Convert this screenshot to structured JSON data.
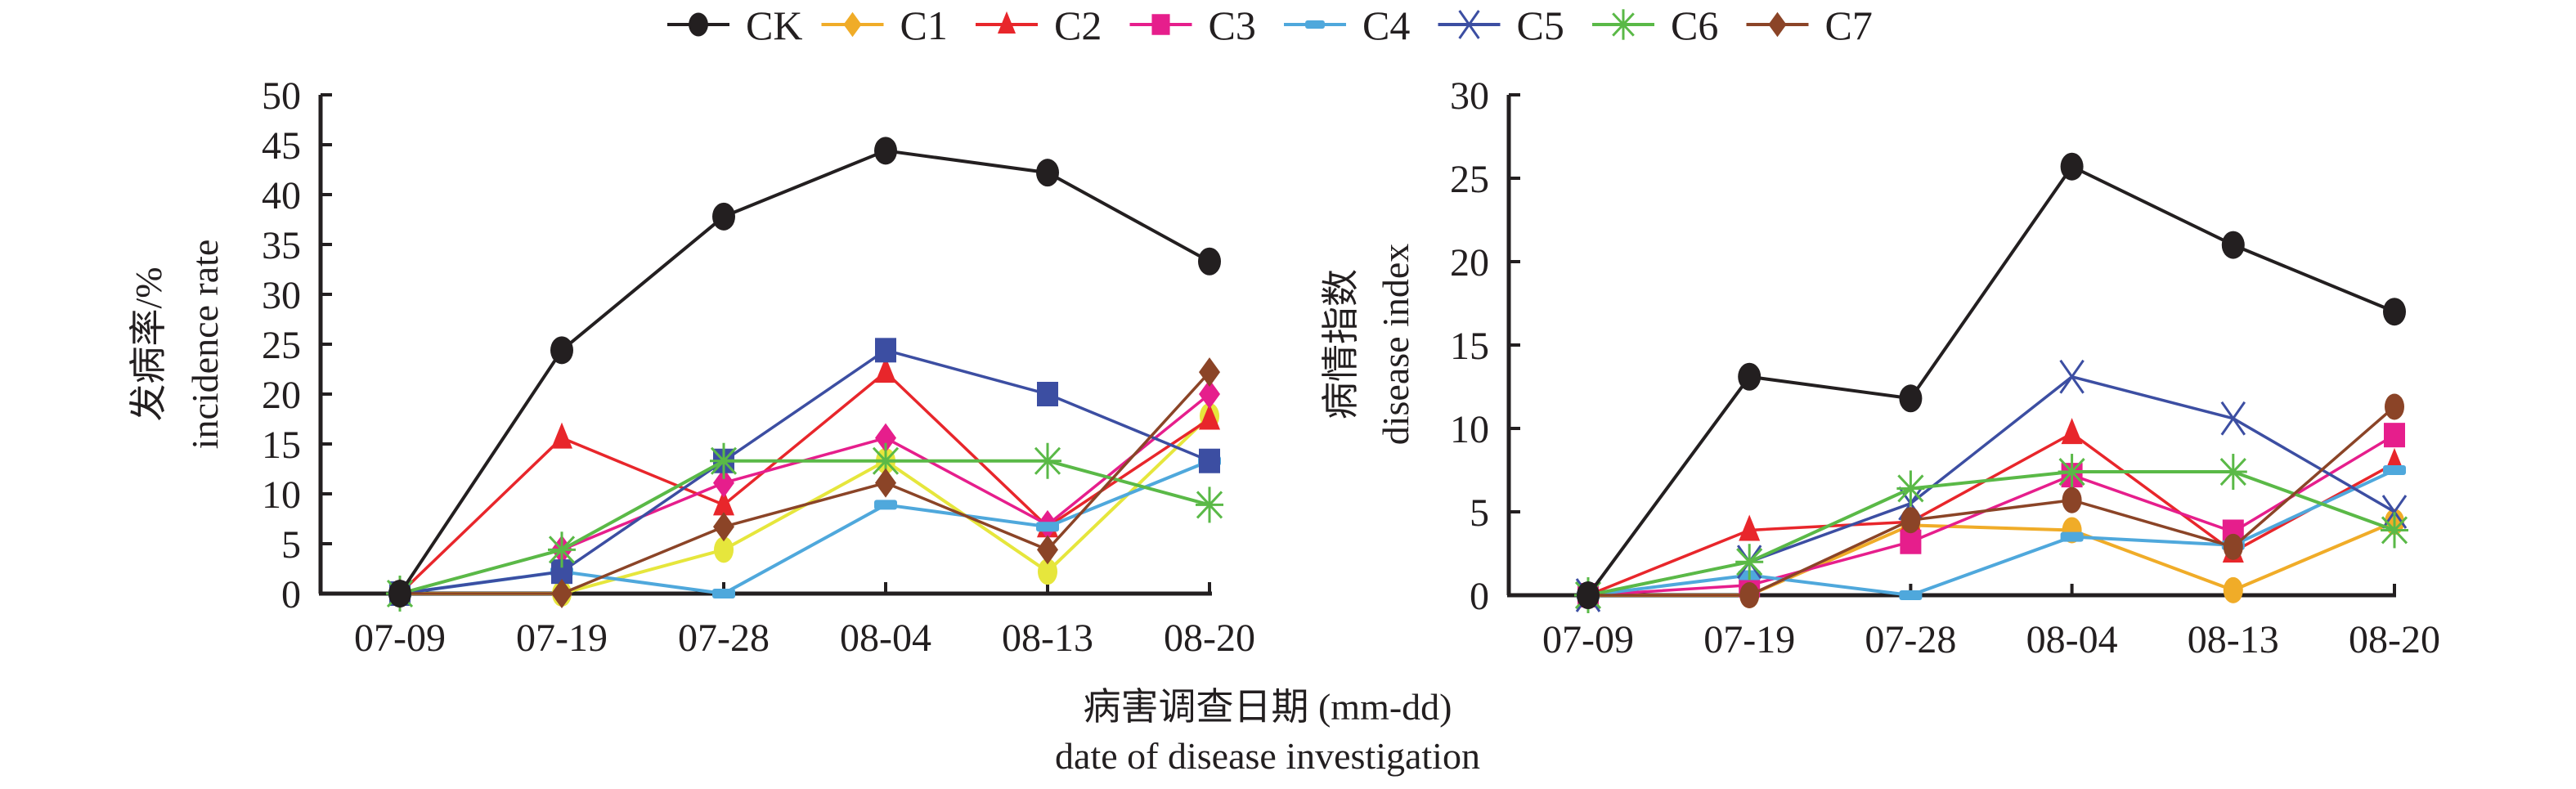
{
  "legend": {
    "items": [
      {
        "key": "CK",
        "label": "CK",
        "color": "#231f20",
        "marker": "circle"
      },
      {
        "key": "C1",
        "label": "C1",
        "color": "#f0ac28",
        "marker": "diamond"
      },
      {
        "key": "C2",
        "label": "C2",
        "color": "#e8262b",
        "marker": "triangle"
      },
      {
        "key": "C3",
        "label": "C3",
        "color": "#e61e8c",
        "marker": "square"
      },
      {
        "key": "C4",
        "label": "C4",
        "color": "#4fa8dc",
        "marker": "dash"
      },
      {
        "key": "C5",
        "label": "C5",
        "color": "#3c4ea2",
        "marker": "x"
      },
      {
        "key": "C6",
        "label": "C6",
        "color": "#5ab947",
        "marker": "asterisk"
      },
      {
        "key": "C7",
        "label": "C7",
        "color": "#8b4427",
        "marker": "diamond"
      }
    ]
  },
  "shared_xlabel": {
    "line1": "病害调查日期 (mm-dd)",
    "line2": "date of disease investigation"
  },
  "chart_data": [
    {
      "type": "line",
      "title": "",
      "ylabel_cn": "发病率/%",
      "ylabel_en": "incidence rate",
      "xlabel": "病害调查日期 (mm-dd) date of disease investigation",
      "categories": [
        "07-09",
        "07-19",
        "07-28",
        "08-04",
        "08-13",
        "08-20"
      ],
      "ylim": [
        0,
        50
      ],
      "yticks": [
        0,
        5,
        10,
        15,
        20,
        25,
        30,
        35,
        40,
        45,
        50
      ],
      "grid": false,
      "series": [
        {
          "name": "CK",
          "color": "#231f20",
          "marker": "circle",
          "values": [
            0,
            24.4,
            37.8,
            44.4,
            42.2,
            33.3
          ]
        },
        {
          "name": "C1",
          "color": "#e6e63c",
          "marker": "ellipse",
          "values": [
            0,
            0,
            4.4,
            13.3,
            2.2,
            17.8
          ]
        },
        {
          "name": "C2",
          "color": "#e8262b",
          "marker": "triangle",
          "values": [
            0,
            15.6,
            8.9,
            22.2,
            6.7,
            17.5
          ]
        },
        {
          "name": "C3",
          "color": "#e61e8c",
          "marker": "diamond",
          "values": [
            0,
            4.4,
            11.1,
            15.6,
            6.9,
            20.0
          ]
        },
        {
          "name": "C4",
          "color": "#4fa8dc",
          "marker": "dash",
          "values": [
            0,
            2.2,
            0,
            8.9,
            6.7,
            13.3
          ]
        },
        {
          "name": "C5",
          "color": "#3c4ea2",
          "marker": "square",
          "values": [
            0,
            2.2,
            13.3,
            24.4,
            20.0,
            13.3
          ]
        },
        {
          "name": "C6",
          "color": "#5ab947",
          "marker": "asterisk",
          "values": [
            0,
            4.4,
            13.3,
            13.3,
            13.3,
            8.9
          ]
        },
        {
          "name": "C7",
          "color": "#8b4427",
          "marker": "diamond",
          "values": [
            0,
            0,
            6.7,
            11.1,
            4.4,
            22.2
          ]
        }
      ]
    },
    {
      "type": "line",
      "title": "",
      "ylabel_cn": "病情指数",
      "ylabel_en": "disease index",
      "xlabel": "病害调查日期 (mm-dd) date of disease investigation",
      "categories": [
        "07-09",
        "07-19",
        "07-28",
        "08-04",
        "08-13",
        "08-20"
      ],
      "ylim": [
        0,
        30
      ],
      "yticks": [
        0,
        5,
        10,
        15,
        20,
        25,
        30
      ],
      "grid": false,
      "series": [
        {
          "name": "CK",
          "color": "#231f20",
          "marker": "circle",
          "values": [
            0,
            13.1,
            11.8,
            25.7,
            21.0,
            17.0
          ]
        },
        {
          "name": "C1",
          "color": "#f0ac28",
          "marker": "ellipse",
          "values": [
            0,
            0,
            4.2,
            3.9,
            0.3,
            4.4
          ]
        },
        {
          "name": "C2",
          "color": "#e8262b",
          "marker": "triangle",
          "values": [
            0,
            3.9,
            4.4,
            9.7,
            2.6,
            7.9
          ]
        },
        {
          "name": "C3",
          "color": "#e61e8c",
          "marker": "square",
          "values": [
            0,
            0.6,
            3.2,
            7.2,
            3.8,
            9.6
          ]
        },
        {
          "name": "C4",
          "color": "#4fa8dc",
          "marker": "dash",
          "values": [
            0,
            1.2,
            0,
            3.5,
            3.0,
            7.5
          ]
        },
        {
          "name": "C5",
          "color": "#3c4ea2",
          "marker": "x",
          "values": [
            0,
            2.0,
            5.5,
            13.1,
            10.6,
            5.0
          ]
        },
        {
          "name": "C6",
          "color": "#5ab947",
          "marker": "asterisk",
          "values": [
            0,
            2.0,
            6.4,
            7.4,
            7.4,
            3.9
          ]
        },
        {
          "name": "C7",
          "color": "#8b4427",
          "marker": "ellipse",
          "values": [
            0,
            0,
            4.5,
            5.7,
            2.9,
            11.3
          ]
        }
      ]
    }
  ]
}
